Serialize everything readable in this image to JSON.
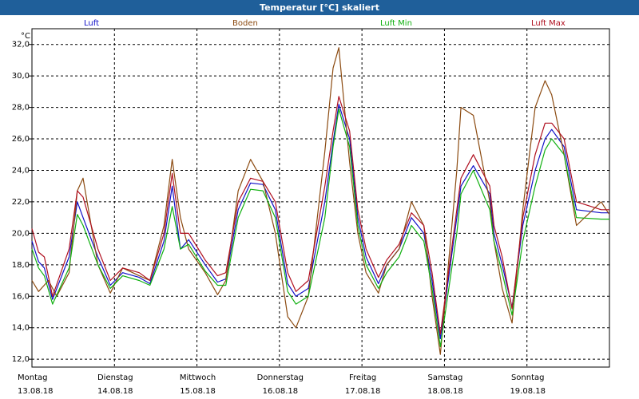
{
  "chart_data": {
    "type": "line",
    "title": "Temperatur [°C] skaliert",
    "ylabel": "°C",
    "ylim": [
      11.5,
      33.0
    ],
    "yticks": [
      12.0,
      14.0,
      16.0,
      18.0,
      20.0,
      22.0,
      24.0,
      26.0,
      28.0,
      30.0,
      32.0
    ],
    "ytick_labels": [
      "12,0",
      "14,0",
      "16,0",
      "18,0",
      "20,0",
      "22,0",
      "24,0",
      "26,0",
      "28,0",
      "30,0",
      "32,0"
    ],
    "xlim": [
      0,
      7.0
    ],
    "days": [
      {
        "weekday": "Montag",
        "date": "13.08.18"
      },
      {
        "weekday": "Dienstag",
        "date": "14.08.18"
      },
      {
        "weekday": "Mittwoch",
        "date": "15.08.18"
      },
      {
        "weekday": "Donnerstag",
        "date": "16.08.18"
      },
      {
        "weekday": "Freitag",
        "date": "17.08.18"
      },
      {
        "weekday": "Samstag",
        "date": "18.08.18"
      },
      {
        "weekday": "Sonntag",
        "date": "19.08.18"
      }
    ],
    "grid": true,
    "series": [
      {
        "name": "Luft",
        "color": "#1010c8",
        "x": [
          0,
          0.08,
          0.15,
          0.25,
          0.45,
          0.55,
          0.62,
          0.8,
          0.95,
          1.1,
          1.3,
          1.43,
          1.6,
          1.7,
          1.8,
          1.9,
          2.1,
          2.25,
          2.35,
          2.5,
          2.65,
          2.8,
          2.95,
          3.1,
          3.2,
          3.35,
          3.55,
          3.65,
          3.72,
          3.85,
          3.95,
          4.05,
          4.2,
          4.3,
          4.45,
          4.6,
          4.75,
          4.85,
          4.95,
          5.15,
          5.2,
          5.35,
          5.55,
          5.6,
          5.7,
          5.82,
          5.95,
          6.1,
          6.22,
          6.3,
          6.45,
          6.6,
          6.9,
          6.96,
          7.0
        ],
        "y": [
          19.5,
          18.2,
          17.8,
          15.8,
          18.5,
          22.0,
          21.0,
          18.5,
          16.7,
          17.5,
          17.2,
          16.8,
          19.5,
          23.0,
          19.0,
          19.6,
          18.0,
          16.9,
          17.1,
          21.5,
          23.2,
          23.1,
          21.5,
          16.8,
          16.0,
          16.5,
          22.0,
          25.8,
          28.2,
          26.0,
          21.0,
          18.5,
          16.8,
          18.0,
          19.0,
          21.0,
          20.0,
          17.0,
          13.3,
          21.0,
          23.0,
          24.3,
          22.5,
          20.0,
          18.0,
          15.3,
          20.5,
          24.0,
          26.0,
          26.6,
          25.5,
          21.5,
          21.3,
          21.3,
          21.3
        ]
      },
      {
        "name": "Boden",
        "color": "#8b4a10",
        "x": [
          0,
          0.08,
          0.2,
          0.3,
          0.45,
          0.55,
          0.62,
          0.8,
          0.95,
          1.1,
          1.3,
          1.43,
          1.6,
          1.7,
          1.8,
          1.9,
          2.1,
          2.25,
          2.35,
          2.5,
          2.65,
          2.8,
          2.95,
          3.1,
          3.2,
          3.35,
          3.55,
          3.65,
          3.72,
          3.85,
          3.95,
          4.05,
          4.2,
          4.3,
          4.45,
          4.6,
          4.75,
          4.85,
          4.95,
          5.15,
          5.2,
          5.35,
          5.55,
          5.6,
          5.7,
          5.82,
          5.95,
          6.1,
          6.22,
          6.3,
          6.45,
          6.6,
          6.9,
          6.96,
          7.0
        ],
        "y": [
          17.0,
          16.3,
          17.0,
          16.0,
          17.5,
          22.7,
          23.5,
          18.0,
          16.2,
          17.8,
          17.3,
          17.0,
          20.5,
          24.7,
          21.0,
          19.0,
          17.5,
          16.1,
          17.0,
          22.7,
          24.7,
          23.3,
          20.0,
          14.7,
          14.0,
          16.0,
          25.2,
          30.5,
          31.8,
          24.5,
          20.0,
          17.5,
          16.2,
          18.0,
          19.0,
          22.0,
          20.5,
          16.0,
          12.3,
          24.0,
          28.0,
          27.5,
          22.0,
          19.5,
          16.5,
          14.3,
          21.5,
          28.0,
          29.7,
          28.8,
          25.0,
          20.5,
          22.0,
          21.5,
          21.2
        ]
      },
      {
        "name": "Luft Min",
        "color": "#10b010",
        "x": [
          0,
          0.08,
          0.15,
          0.25,
          0.45,
          0.55,
          0.62,
          0.8,
          0.95,
          1.1,
          1.3,
          1.43,
          1.6,
          1.7,
          1.8,
          1.9,
          2.1,
          2.25,
          2.35,
          2.5,
          2.65,
          2.8,
          2.95,
          3.1,
          3.2,
          3.35,
          3.55,
          3.65,
          3.72,
          3.85,
          3.95,
          4.05,
          4.2,
          4.3,
          4.45,
          4.6,
          4.75,
          4.85,
          4.95,
          5.15,
          5.2,
          5.35,
          5.55,
          5.6,
          5.7,
          5.82,
          5.95,
          6.1,
          6.22,
          6.3,
          6.45,
          6.6,
          6.9,
          6.96,
          7.0
        ],
        "y": [
          19.0,
          17.8,
          17.3,
          15.5,
          17.8,
          21.2,
          20.5,
          18.0,
          16.5,
          17.3,
          17.0,
          16.7,
          19.0,
          21.7,
          19.0,
          19.3,
          17.6,
          16.7,
          16.7,
          21.0,
          22.8,
          22.7,
          21.0,
          16.3,
          15.5,
          16.0,
          21.0,
          25.5,
          27.9,
          25.5,
          20.5,
          18.0,
          16.5,
          17.5,
          18.5,
          20.5,
          19.5,
          16.5,
          12.8,
          20.0,
          22.5,
          24.0,
          21.5,
          19.5,
          17.5,
          14.8,
          19.5,
          23.0,
          25.3,
          26.0,
          25.0,
          21.0,
          20.9,
          20.9,
          20.9
        ]
      },
      {
        "name": "Luft Max",
        "color": "#b01020",
        "x": [
          0,
          0.08,
          0.15,
          0.25,
          0.45,
          0.55,
          0.62,
          0.8,
          0.95,
          1.1,
          1.3,
          1.43,
          1.6,
          1.7,
          1.8,
          1.9,
          2.1,
          2.25,
          2.35,
          2.5,
          2.65,
          2.8,
          2.95,
          3.1,
          3.2,
          3.35,
          3.55,
          3.65,
          3.72,
          3.85,
          3.95,
          4.05,
          4.2,
          4.3,
          4.45,
          4.6,
          4.75,
          4.85,
          4.95,
          5.15,
          5.2,
          5.35,
          5.55,
          5.6,
          5.7,
          5.82,
          5.95,
          6.1,
          6.22,
          6.3,
          6.45,
          6.6,
          6.9,
          6.96,
          7.0
        ],
        "y": [
          20.3,
          18.8,
          18.5,
          16.0,
          19.0,
          22.7,
          22.3,
          19.0,
          17.0,
          17.8,
          17.5,
          17.0,
          20.0,
          23.8,
          20.0,
          20.0,
          18.3,
          17.3,
          17.5,
          22.0,
          23.5,
          23.3,
          22.0,
          17.5,
          16.3,
          17.0,
          23.0,
          26.5,
          28.7,
          26.5,
          21.5,
          19.0,
          17.2,
          18.3,
          19.3,
          21.3,
          20.5,
          17.5,
          13.6,
          21.5,
          23.5,
          25.0,
          23.0,
          20.5,
          18.5,
          15.2,
          21.0,
          25.0,
          27.0,
          27.0,
          26.0,
          22.0,
          21.5,
          21.5,
          21.5
        ]
      }
    ]
  }
}
